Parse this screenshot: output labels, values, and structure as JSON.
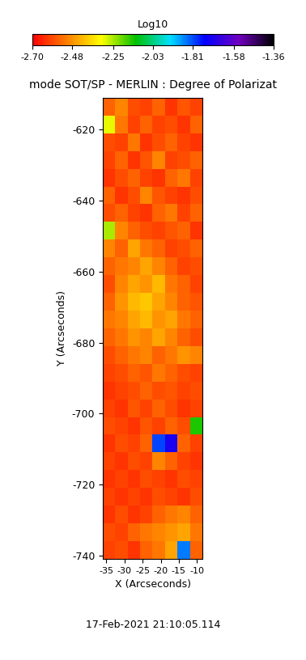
{
  "chart_data": {
    "type": "heatmap",
    "title": "mode SOT/SP - MERLIN : Degree of Polarizat",
    "xlabel": "X (Arcseconds)",
    "ylabel": "Y (Arcseconds)",
    "annotations": [
      "17-Feb-2021 21:10:05.114"
    ],
    "xlim": [
      -36,
      -8.5
    ],
    "ylim": [
      -741,
      -611
    ],
    "xticks": [
      -35,
      -30,
      -25,
      -20,
      -15,
      -10
    ],
    "yticks": [
      -740,
      -720,
      -700,
      -680,
      -660,
      -640,
      -620
    ],
    "colorbar": {
      "label": "Log10",
      "range": [
        -2.7,
        -1.36
      ],
      "ticks": [
        {
          "value": -2.7,
          "label": "-2.70"
        },
        {
          "value": -2.48,
          "label": "-2.48"
        },
        {
          "value": -2.25,
          "label": "-2.25"
        },
        {
          "value": -2.03,
          "label": "-2.03"
        },
        {
          "value": -1.81,
          "label": "-1.81"
        },
        {
          "value": -1.58,
          "label": "-1.58"
        },
        {
          "value": -1.36,
          "label": "-1.36"
        }
      ]
    },
    "cells": [
      [
        -2.55,
        -2.5,
        -2.58,
        -2.6,
        -2.55,
        -2.62,
        -2.57,
        -2.6
      ],
      [
        -2.3,
        -2.52,
        -2.6,
        -2.55,
        -2.6,
        -2.58,
        -2.62,
        -2.55
      ],
      [
        -2.58,
        -2.6,
        -2.52,
        -2.62,
        -2.58,
        -2.55,
        -2.6,
        -2.62
      ],
      [
        -2.6,
        -2.55,
        -2.62,
        -2.57,
        -2.5,
        -2.6,
        -2.58,
        -2.55
      ],
      [
        -2.62,
        -2.58,
        -2.55,
        -2.6,
        -2.62,
        -2.55,
        -2.52,
        -2.6
      ],
      [
        -2.55,
        -2.62,
        -2.58,
        -2.5,
        -2.57,
        -2.6,
        -2.62,
        -2.58
      ],
      [
        -2.58,
        -2.55,
        -2.6,
        -2.62,
        -2.55,
        -2.52,
        -2.6,
        -2.55
      ],
      [
        -2.25,
        -2.5,
        -2.55,
        -2.58,
        -2.6,
        -2.57,
        -2.55,
        -2.62
      ],
      [
        -2.5,
        -2.55,
        -2.45,
        -2.52,
        -2.55,
        -2.6,
        -2.58,
        -2.55
      ],
      [
        -2.55,
        -2.52,
        -2.5,
        -2.45,
        -2.5,
        -2.55,
        -2.6,
        -2.58
      ],
      [
        -2.58,
        -2.5,
        -2.45,
        -2.48,
        -2.42,
        -2.52,
        -2.55,
        -2.6
      ],
      [
        -2.55,
        -2.48,
        -2.42,
        -2.4,
        -2.45,
        -2.5,
        -2.55,
        -2.57
      ],
      [
        -2.52,
        -2.5,
        -2.45,
        -2.42,
        -2.48,
        -2.45,
        -2.52,
        -2.55
      ],
      [
        -2.55,
        -2.52,
        -2.48,
        -2.5,
        -2.45,
        -2.5,
        -2.55,
        -2.58
      ],
      [
        -2.58,
        -2.55,
        -2.52,
        -2.5,
        -2.55,
        -2.52,
        -2.48,
        -2.5
      ],
      [
        -2.6,
        -2.58,
        -2.55,
        -2.57,
        -2.52,
        -2.55,
        -2.58,
        -2.6
      ],
      [
        -2.62,
        -2.6,
        -2.58,
        -2.55,
        -2.58,
        -2.57,
        -2.6,
        -2.58
      ],
      [
        -2.6,
        -2.62,
        -2.57,
        -2.6,
        -2.55,
        -2.58,
        -2.62,
        -2.6
      ],
      [
        -2.58,
        -2.6,
        -2.62,
        -2.57,
        -2.6,
        -2.55,
        -2.58,
        -2.15
      ],
      [
        -2.62,
        -2.58,
        -2.6,
        -2.55,
        -1.8,
        -1.7,
        -2.55,
        -2.6
      ],
      [
        -2.6,
        -2.62,
        -2.58,
        -2.6,
        -2.5,
        -2.55,
        -2.6,
        -2.62
      ],
      [
        -2.62,
        -2.6,
        -2.62,
        -2.58,
        -2.6,
        -2.62,
        -2.58,
        -2.6
      ],
      [
        -2.6,
        -2.62,
        -2.6,
        -2.62,
        -2.58,
        -2.6,
        -2.62,
        -2.58
      ],
      [
        -2.62,
        -2.58,
        -2.62,
        -2.6,
        -2.55,
        -2.52,
        -2.5,
        -2.55
      ],
      [
        -2.58,
        -2.6,
        -2.55,
        -2.52,
        -2.5,
        -2.48,
        -2.45,
        -2.52
      ],
      [
        -2.6,
        -2.58,
        -2.62,
        -2.55,
        -2.52,
        -2.45,
        -1.85,
        -2.55
      ]
    ]
  }
}
